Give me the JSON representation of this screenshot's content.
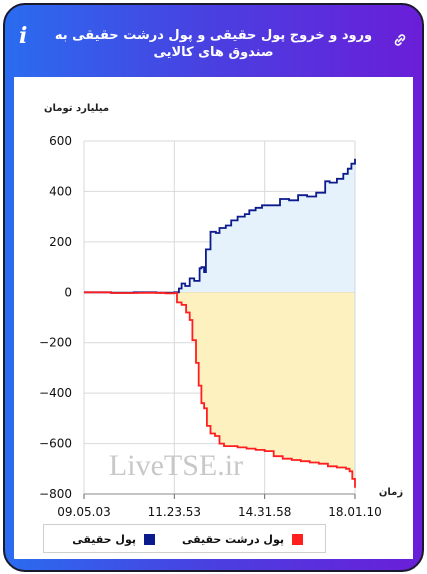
{
  "header": {
    "title": "ورود و خروج پول حقیقی و پول درشت حقیقی به صندوق های کالایی"
  },
  "icons": {
    "info": "i",
    "info_name": "info-icon",
    "link_name": "link-icon"
  },
  "watermark": "LiveTSE.ir",
  "colors": {
    "real_money": "#0b1a8c",
    "big_real_money": "#ff1f1f",
    "positive_fill": "#e6f2fb",
    "negative_fill": "#fdf1c0"
  },
  "chart_data": {
    "type": "line",
    "ylabel": "میلیارد تومان",
    "xlabel": "زمان",
    "ylim": [
      -800,
      600
    ],
    "y_ticks": [
      "600",
      "400",
      "200",
      "0",
      "−200",
      "−400",
      "−600",
      "−800"
    ],
    "y_tick_values": [
      600,
      400,
      200,
      0,
      -200,
      -400,
      -600,
      -800
    ],
    "x_ticks": [
      "09.05.03",
      "11.23.53",
      "14.31.58",
      "18.01.10"
    ],
    "x_tick_values": [
      0,
      1,
      2,
      3
    ],
    "grid": true,
    "legend_position": "bottom",
    "series": [
      {
        "name": "پول حقیقی",
        "color": "#0b1a8c",
        "fill": "#e6f2fb",
        "x": [
          0,
          0.3,
          0.55,
          0.8,
          1.0,
          1.05,
          1.08,
          1.12,
          1.17,
          1.22,
          1.28,
          1.3,
          1.33,
          1.35,
          1.4,
          1.46,
          1.5,
          1.57,
          1.63,
          1.7,
          1.78,
          1.83,
          1.9,
          1.97,
          2.07,
          2.17,
          2.27,
          2.37,
          2.47,
          2.57,
          2.67,
          2.72,
          2.8,
          2.87,
          2.92,
          2.96,
          3.0
        ],
        "y": [
          0,
          -2,
          0,
          -2,
          0,
          15,
          35,
          25,
          55,
          45,
          95,
          100,
          80,
          170,
          240,
          235,
          255,
          265,
          285,
          300,
          310,
          325,
          335,
          345,
          345,
          370,
          365,
          385,
          380,
          395,
          440,
          435,
          450,
          470,
          490,
          510,
          530
        ]
      },
      {
        "name": "پول درشت حقیقی",
        "color": "#ff1f1f",
        "fill": "#fdf1c0",
        "x": [
          0,
          0.3,
          0.6,
          0.9,
          1.0,
          1.03,
          1.08,
          1.13,
          1.17,
          1.2,
          1.24,
          1.27,
          1.3,
          1.33,
          1.36,
          1.4,
          1.45,
          1.5,
          1.55,
          1.62,
          1.7,
          1.8,
          1.9,
          2.0,
          2.1,
          2.2,
          2.3,
          2.4,
          2.5,
          2.6,
          2.7,
          2.8,
          2.9,
          2.94,
          2.97,
          3.0
        ],
        "y": [
          0,
          -3,
          -2,
          -4,
          -3,
          -40,
          -50,
          -80,
          -110,
          -190,
          -280,
          -370,
          -440,
          -460,
          -530,
          -560,
          -570,
          -600,
          -610,
          -610,
          -615,
          -620,
          -625,
          -630,
          -650,
          -660,
          -665,
          -670,
          -675,
          -680,
          -690,
          -695,
          -700,
          -710,
          -740,
          -775
        ]
      }
    ]
  }
}
